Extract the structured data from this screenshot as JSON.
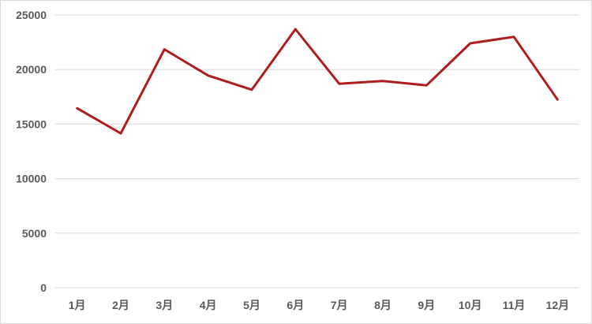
{
  "chart_data": {
    "type": "line",
    "categories": [
      "1月",
      "2月",
      "3月",
      "4月",
      "5月",
      "6月",
      "7月",
      "8月",
      "9月",
      "10月",
      "11月",
      "12月"
    ],
    "series": [
      {
        "values": [
          16450,
          14150,
          21850,
          19450,
          18150,
          23700,
          18700,
          18950,
          18550,
          22400,
          23000,
          17250
        ]
      }
    ],
    "ylim": [
      0,
      25000
    ],
    "yticks": [
      0,
      5000,
      10000,
      15000,
      20000,
      25000
    ],
    "grid": true,
    "legend": "none",
    "colors": {
      "line": "#b01c1c",
      "grid": "#d9d9d9",
      "text": "#595959"
    }
  }
}
